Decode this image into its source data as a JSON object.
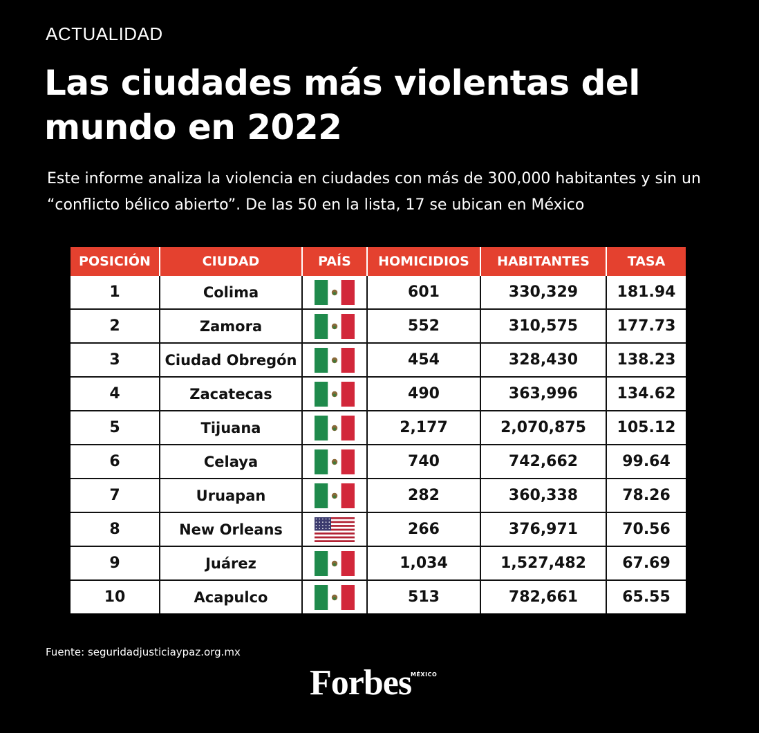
{
  "section_label": "ACTUALIDAD",
  "headline": "Las ciudades más violentas del mundo en 2022",
  "dek": "Este informe analiza la violencia en ciudades con más de 300,000 habitantes y sin un “conflicto bélico abierto”. De las 50 en la lista, 17 se ubican en México",
  "table": {
    "headers": [
      "POSICIÓN",
      "CIUDAD",
      "PAÍS",
      "HOMICIDIOS",
      "HABITANTES",
      "TASA"
    ],
    "rows": [
      {
        "position": "1",
        "city": "Colima",
        "country_flag": "mexico-flag-icon",
        "homicides": "601",
        "population": "330,329",
        "rate": "181.94"
      },
      {
        "position": "2",
        "city": "Zamora",
        "country_flag": "mexico-flag-icon",
        "homicides": "552",
        "population": "310,575",
        "rate": "177.73"
      },
      {
        "position": "3",
        "city": "Ciudad Obregón",
        "country_flag": "mexico-flag-icon",
        "homicides": "454",
        "population": "328,430",
        "rate": "138.23"
      },
      {
        "position": "4",
        "city": "Zacatecas",
        "country_flag": "mexico-flag-icon",
        "homicides": "490",
        "population": "363,996",
        "rate": "134.62"
      },
      {
        "position": "5",
        "city": "Tijuana",
        "country_flag": "mexico-flag-icon",
        "homicides": "2,177",
        "population": "2,070,875",
        "rate": "105.12"
      },
      {
        "position": "6",
        "city": "Celaya",
        "country_flag": "mexico-flag-icon",
        "homicides": "740",
        "population": "742,662",
        "rate": "99.64"
      },
      {
        "position": "7",
        "city": "Uruapan",
        "country_flag": "mexico-flag-icon",
        "homicides": "282",
        "population": "360,338",
        "rate": "78.26"
      },
      {
        "position": "8",
        "city": "New Orleans",
        "country_flag": "usa-flag-icon",
        "homicides": "266",
        "population": "376,971",
        "rate": "70.56"
      },
      {
        "position": "9",
        "city": "Juárez",
        "country_flag": "mexico-flag-icon",
        "homicides": "1,034",
        "population": "1,527,482",
        "rate": "67.69"
      },
      {
        "position": "10",
        "city": "Acapulco",
        "country_flag": "mexico-flag-icon",
        "homicides": "513",
        "population": "782,661",
        "rate": "65.55"
      }
    ]
  },
  "source": "Fuente: seguridadjusticiaypaz.org.mx",
  "brand": {
    "name": "Forbes",
    "edition": "MÉXICO"
  },
  "colors": {
    "background": "#000000",
    "header_red": "#e4412f",
    "mexico_green": "#1f8a4c",
    "mexico_red": "#d2273a",
    "usa_blue": "#3c3b6e",
    "usa_red": "#b22234"
  }
}
